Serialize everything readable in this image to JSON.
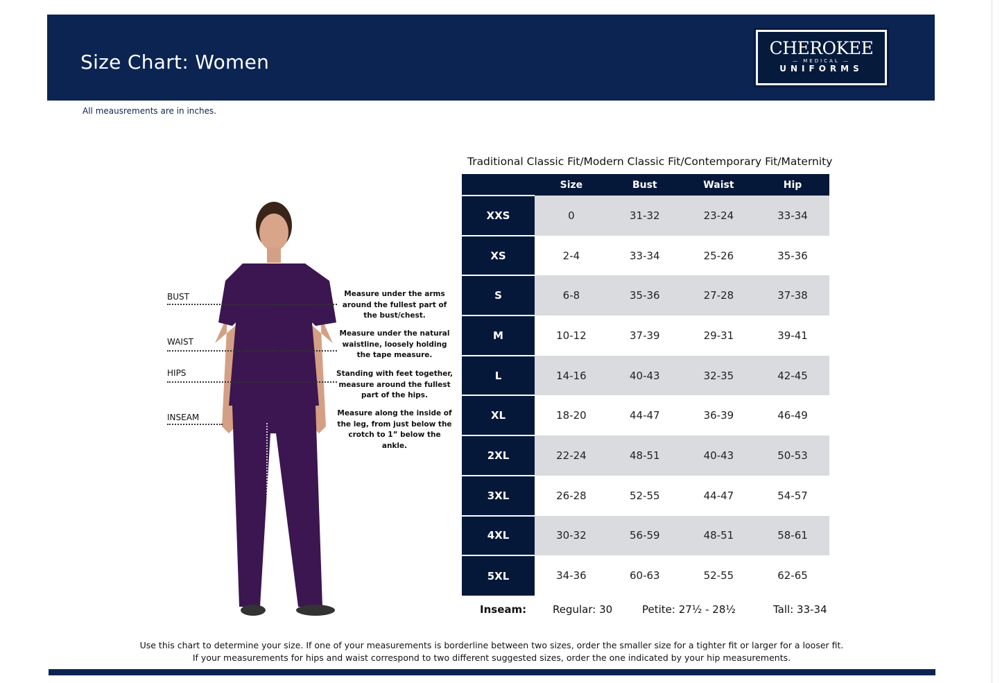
{
  "header": {
    "title": "Size Chart: Women",
    "logo": {
      "brand": "CHEROKEE",
      "sub": "MEDICAL",
      "line2": "UNIFORMS"
    }
  },
  "note": "All meausrements are in inches.",
  "measures": [
    {
      "label": "BUST",
      "desc": "Measure under the arms around the fullest part of the bust/chest."
    },
    {
      "label": "WAIST",
      "desc": "Measure under the natural waistline, loosely holding the tape measure."
    },
    {
      "label": "HIPS",
      "desc": "Standing with feet together, measure around the fullest part of the hips."
    },
    {
      "label": "INSEAM",
      "desc": "Measure along the inside of the leg, from just below the crotch to 1” below the ankle."
    }
  ],
  "table": {
    "title": "Traditional Classic Fit/Modern Classic Fit/Contemporary Fit/Maternity",
    "headers": [
      "",
      "Size",
      "Bust",
      "Waist",
      "Hip"
    ],
    "rows": [
      [
        "XXS",
        "0",
        "31-32",
        "23-24",
        "33-34"
      ],
      [
        "XS",
        "2-4",
        "33-34",
        "25-26",
        "35-36"
      ],
      [
        "S",
        "6-8",
        "35-36",
        "27-28",
        "37-38"
      ],
      [
        "M",
        "10-12",
        "37-39",
        "29-31",
        "39-41"
      ],
      [
        "L",
        "14-16",
        "40-43",
        "32-35",
        "42-45"
      ],
      [
        "XL",
        "18-20",
        "44-47",
        "36-39",
        "46-49"
      ],
      [
        "2XL",
        "22-24",
        "48-51",
        "40-43",
        "50-53"
      ],
      [
        "3XL",
        "26-28",
        "52-55",
        "44-47",
        "54-57"
      ],
      [
        "4XL",
        "30-32",
        "56-59",
        "48-51",
        "58-61"
      ],
      [
        "5XL",
        "34-36",
        "60-63",
        "52-55",
        "62-65"
      ]
    ]
  },
  "inseam": {
    "label": "Inseam:",
    "regular": "Regular: 30",
    "petite": "Petite: 27½ - 28½",
    "tall": "Tall: 33-34"
  },
  "footer": [
    "Use this chart to determine your size. If one of your measurements is borderline between two sizes, order the smaller size for a tighter fit or larger for a looser fit.",
    "If your measurements for hips and waist correspond to two different suggested sizes, order the one indicated by your hip measurements."
  ],
  "colors": {
    "navy": "#0b2452",
    "table_header": "#06183a",
    "row_gray": "#d9dbdf",
    "scrubs": "#3b1650"
  }
}
